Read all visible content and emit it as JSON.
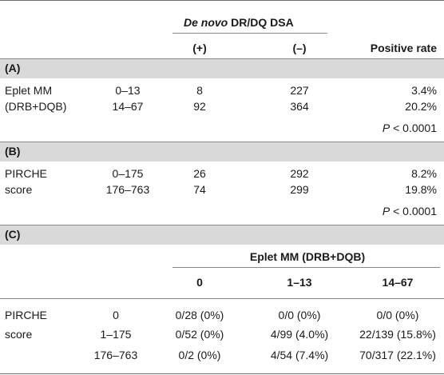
{
  "table": {
    "header": {
      "dsa_title_italic": "De novo",
      "dsa_title_rest": " DR/DQ DSA",
      "pos_label": "(+)",
      "neg_label": "(–)",
      "rate_label": "Positive rate"
    },
    "section_a": {
      "label": "(A)",
      "row_label_1": "Eplet MM",
      "row_label_2": "(DRB+DQB)",
      "rows": [
        {
          "range": "0–13",
          "pos": "8",
          "neg": "227",
          "rate": "3.4%"
        },
        {
          "range": "14–67",
          "pos": "92",
          "neg": "364",
          "rate": "20.2%"
        }
      ],
      "p_italic": "P",
      "p_rest": " < 0.0001"
    },
    "section_b": {
      "label": "(B)",
      "row_label_1": "PIRCHE",
      "row_label_2": "score",
      "rows": [
        {
          "range": "0–175",
          "pos": "26",
          "neg": "292",
          "rate": "8.2%"
        },
        {
          "range": "176–763",
          "pos": "74",
          "neg": "299",
          "rate": "19.8%"
        }
      ],
      "p_italic": "P",
      "p_rest": " < 0.0001"
    },
    "section_c": {
      "label": "(C)",
      "group_header": "Eplet MM (DRB+DQB)",
      "col_headers": [
        "0",
        "1–13",
        "14–67"
      ],
      "row_label_1": "PIRCHE",
      "row_label_2": "score",
      "rows": [
        {
          "range": "0",
          "c0": "0/28 (0%)",
          "c1": "0/0 (0%)",
          "c2": "0/0 (0%)"
        },
        {
          "range": "1–175",
          "c0": "0/52 (0%)",
          "c1": "4/99 (4.0%)",
          "c2": "22/139 (15.8%)"
        },
        {
          "range": "176–763",
          "c0": "0/2 (0%)",
          "c1": "4/54 (7.4%)",
          "c2": "70/317 (22.1%)"
        }
      ]
    }
  }
}
